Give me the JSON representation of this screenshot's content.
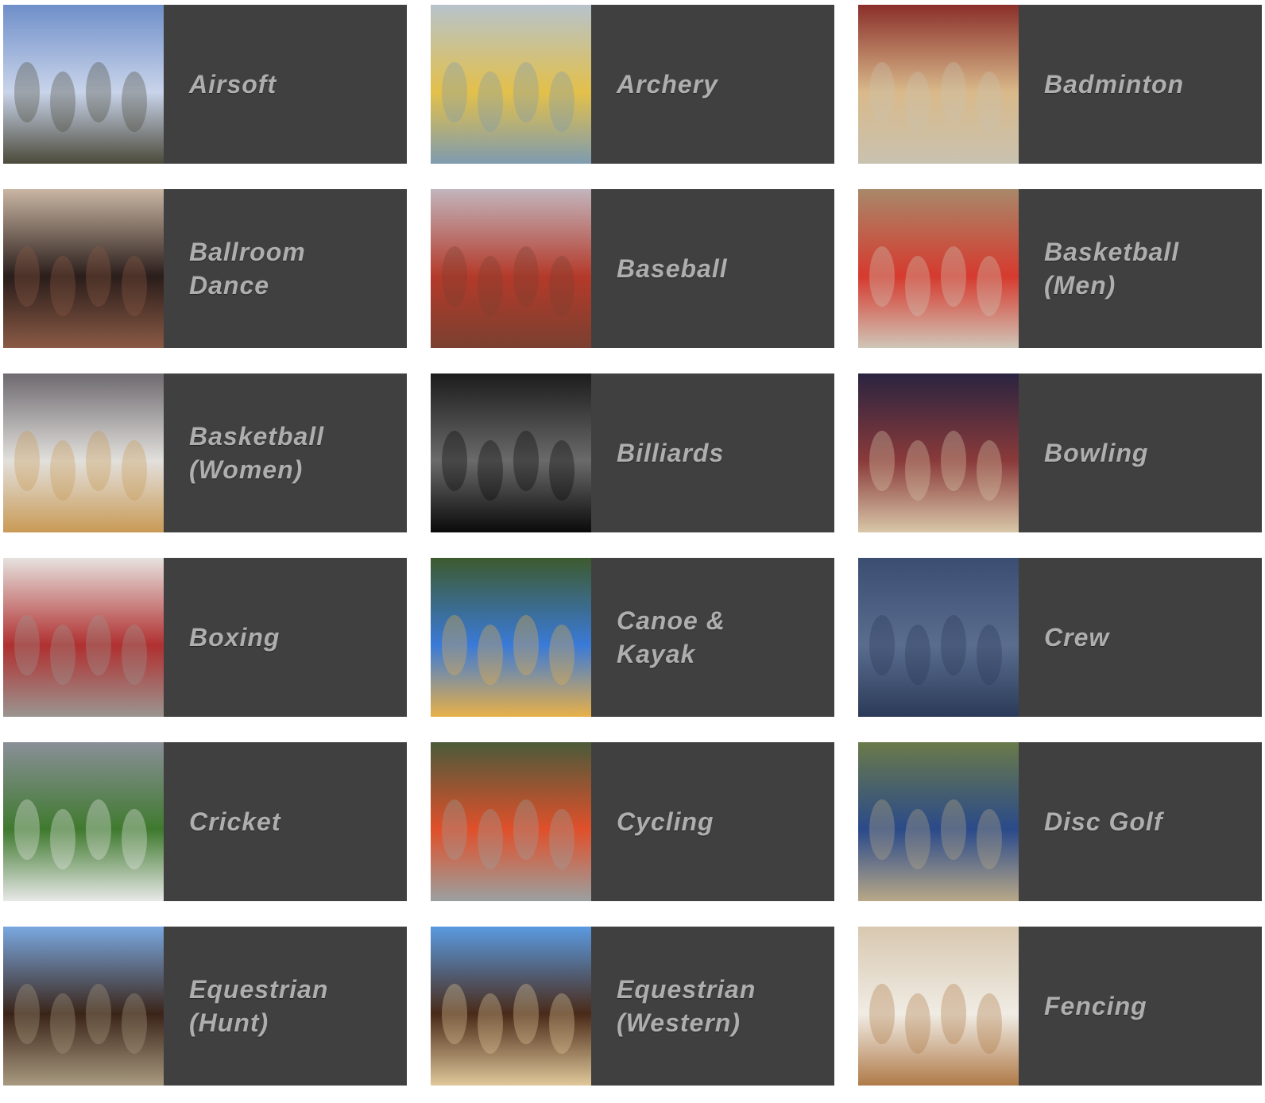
{
  "sports": [
    {
      "id": "airsoft",
      "label": "Airsoft",
      "photo": "group-in-camouflage-photo",
      "tones": [
        "#6f8fc9",
        "#c9d4ea",
        "#4b4a3a"
      ]
    },
    {
      "id": "archery",
      "label": "Archery",
      "photo": "archers-with-bows-photo",
      "tones": [
        "#b7c3cc",
        "#e3c04a",
        "#7e9bb0"
      ]
    },
    {
      "id": "badminton",
      "label": "Badminton",
      "photo": "indoor-badminton-court-photo",
      "tones": [
        "#8a2f2a",
        "#d9b98a",
        "#c9c2b0"
      ]
    },
    {
      "id": "ballroom-dance",
      "label": "Ballroom\nDance",
      "photo": "dancing-couple-photo",
      "tones": [
        "#c9b6a3",
        "#2a1d1a",
        "#8a5a45"
      ]
    },
    {
      "id": "baseball",
      "label": "Baseball",
      "photo": "baseball-team-photo",
      "tones": [
        "#c2b5bd",
        "#b43a2a",
        "#7a4030"
      ]
    },
    {
      "id": "basketball-men",
      "label": "Basketball\n(Men)",
      "photo": "mens-basketball-team-photo",
      "tones": [
        "#a8886a",
        "#d63a2e",
        "#cfc6b8"
      ]
    },
    {
      "id": "basketball-women",
      "label": "Basketball\n(Women)",
      "photo": "womens-basketball-team-photo",
      "tones": [
        "#6e6a70",
        "#e2e0dc",
        "#c99a55"
      ]
    },
    {
      "id": "billiards",
      "label": "Billiards",
      "photo": "billiard-balls-photo",
      "tones": [
        "#1c1c1c",
        "#6a6a6a",
        "#0a0a0a"
      ]
    },
    {
      "id": "bowling",
      "label": "Bowling",
      "photo": "bowling-alley-photo",
      "tones": [
        "#2a2440",
        "#8a3a3a",
        "#d8c7a8"
      ]
    },
    {
      "id": "boxing",
      "label": "Boxing",
      "photo": "boxer-with-punching-bag-photo",
      "tones": [
        "#e6e2de",
        "#b03030",
        "#9a9590"
      ]
    },
    {
      "id": "canoe-kayak",
      "label": "Canoe &\nKayak",
      "photo": "kayakers-on-river-photo",
      "tones": [
        "#3d5a2e",
        "#3a7ad8",
        "#e8b048"
      ]
    },
    {
      "id": "crew",
      "label": "Crew",
      "photo": "rowing-boat-on-water-photo",
      "tones": [
        "#3b4e72",
        "#5a6d8f",
        "#2b3a58"
      ]
    },
    {
      "id": "cricket",
      "label": "Cricket",
      "photo": "cricket-batsman-photo",
      "tones": [
        "#8a8f98",
        "#3f7a2e",
        "#e8e8e8"
      ]
    },
    {
      "id": "cycling",
      "label": "Cycling",
      "photo": "cyclist-racing-photo",
      "tones": [
        "#4a5a3a",
        "#e0502a",
        "#9aa0a0"
      ]
    },
    {
      "id": "disc-golf",
      "label": "Disc Golf",
      "photo": "disc-golf-player-photo",
      "tones": [
        "#6a7a4a",
        "#2a4a8a",
        "#b8a888"
      ]
    },
    {
      "id": "equestrian-hunt",
      "label": "Equestrian\n(Hunt)",
      "photo": "horse-and-rider-fence-photo",
      "tones": [
        "#7aa8e0",
        "#3a2418",
        "#a89a80"
      ]
    },
    {
      "id": "equestrian-western",
      "label": "Equestrian\n(Western)",
      "photo": "western-horse-rider-photo",
      "tones": [
        "#5a9ae0",
        "#4a2a18",
        "#e0c89a"
      ]
    },
    {
      "id": "fencing",
      "label": "Fencing",
      "photo": "fencers-in-gym-photo",
      "tones": [
        "#d8c8b0",
        "#f0ece4",
        "#b07a48"
      ]
    }
  ]
}
